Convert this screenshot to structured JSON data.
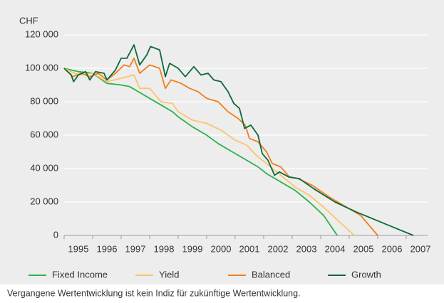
{
  "chart_data": {
    "type": "line",
    "ylabel": "CHF",
    "xlim": [
      1995,
      2008
    ],
    "xticks": [
      {
        "value": 1995,
        "label": "1995"
      },
      {
        "value": 1996,
        "label": "1996"
      },
      {
        "value": 1997,
        "label": "1997"
      },
      {
        "value": 1998,
        "label": "1998"
      },
      {
        "value": 1999,
        "label": "1999"
      },
      {
        "value": 2000,
        "label": "2000"
      },
      {
        "value": 2001,
        "label": "2001"
      },
      {
        "value": 2002,
        "label": "2002"
      },
      {
        "value": 2003,
        "label": "2003"
      },
      {
        "value": 2004,
        "label": "2004"
      },
      {
        "value": 2005,
        "label": "2005"
      },
      {
        "value": 2006,
        "label": "2006"
      },
      {
        "value": 2007,
        "label": "2007"
      }
    ],
    "ylim": [
      0,
      120000
    ],
    "yticks": [
      0,
      {
        "value": 20000,
        "label": "20 000"
      },
      {
        "value": 40000,
        "label": "40 000"
      },
      {
        "value": 60000,
        "label": "60 000"
      },
      {
        "value": 80000,
        "label": "80 000"
      },
      {
        "value": 100000,
        "label": "100 000"
      },
      {
        "value": 120000,
        "label": "120 000"
      }
    ],
    "grid": true,
    "legend": "bottom",
    "series": [
      {
        "name": "Fixed Income",
        "color": "#2bb24c",
        "x": [
          1995,
          1995.5,
          1996,
          1996.5,
          1997,
          1997.3,
          1997.6,
          1998,
          1998.4,
          1998.8,
          1999,
          1999.5,
          2000,
          2000.4,
          2000.9,
          2001.3,
          2001.8,
          2002.1,
          2002.6,
          2003.1,
          2003.6,
          2004.1,
          2004.58
        ],
        "values": [
          100000,
          98000,
          97000,
          91000,
          90000,
          89000,
          86000,
          82000,
          78000,
          74000,
          71000,
          65000,
          60000,
          55000,
          50000,
          46000,
          41000,
          37000,
          32000,
          27000,
          20000,
          12000,
          0
        ]
      },
      {
        "name": "Yield",
        "color": "#fbc46c",
        "x": [
          1995,
          1995.5,
          1996,
          1996.5,
          1997,
          1997.45,
          1997.65,
          1998,
          1998.4,
          1998.8,
          1999,
          1999.5,
          2000,
          2000.5,
          2001,
          2001.4,
          2001.8,
          2002.1,
          2002.6,
          2003.1,
          2003.6,
          2004.1,
          2004.6,
          2005.18
        ],
        "values": [
          100000,
          96000,
          97000,
          92000,
          94000,
          96000,
          88000,
          88000,
          80000,
          79000,
          74000,
          69000,
          67000,
          63000,
          57000,
          54000,
          47000,
          43000,
          36000,
          29000,
          24000,
          17000,
          9000,
          0
        ]
      },
      {
        "name": "Balanced",
        "color": "#f07f1e",
        "x": [
          1995,
          1995.3,
          1995.6,
          1995.9,
          1996.2,
          1996.5,
          1996.8,
          1997.1,
          1997.3,
          1997.45,
          1997.65,
          1998,
          1998.35,
          1998.55,
          1998.75,
          1999.1,
          1999.4,
          1999.7,
          2000,
          2000.4,
          2000.75,
          2001.1,
          2001.35,
          2001.5,
          2001.8,
          2002.1,
          2002.3,
          2002.6,
          2002.9,
          2003.2,
          2003.7,
          2004.3,
          2004.9,
          2005.4,
          2006
        ],
        "values": [
          100000,
          95000,
          97000,
          95000,
          97000,
          93000,
          97000,
          102000,
          101000,
          106000,
          97000,
          102000,
          100000,
          88000,
          93000,
          91000,
          88000,
          86000,
          82000,
          80000,
          74000,
          70000,
          66000,
          58000,
          56000,
          50000,
          43000,
          41000,
          35000,
          34000,
          30000,
          23000,
          17000,
          12000,
          0
        ]
      },
      {
        "name": "Growth",
        "color": "#0b6a3a",
        "x": [
          1995,
          1995.25,
          1995.33,
          1995.5,
          1995.75,
          1995.9,
          1996.1,
          1996.4,
          1996.5,
          1996.8,
          1997,
          1997.2,
          1997.45,
          1997.65,
          1997.9,
          1998.03,
          1998.35,
          1998.55,
          1998.7,
          1999,
          1999.25,
          1999.55,
          1999.8,
          2000.05,
          2000.25,
          2000.5,
          2000.75,
          2000.95,
          2001.15,
          2001.33,
          2001.55,
          2001.8,
          2001.95,
          2002.15,
          2002.38,
          2002.55,
          2002.88,
          2003.25,
          2003.75,
          2004.5,
          2005.25,
          2006.25,
          2007.25
        ],
        "values": [
          100000,
          96000,
          92000,
          96000,
          98000,
          93000,
          98000,
          97000,
          93000,
          99000,
          106000,
          106000,
          114000,
          102000,
          108000,
          113000,
          111000,
          95000,
          103000,
          100000,
          95000,
          101000,
          96000,
          97000,
          93000,
          92000,
          86000,
          79000,
          76000,
          64000,
          66000,
          60000,
          49000,
          45000,
          36000,
          38000,
          35000,
          34000,
          28000,
          20000,
          14000,
          7000,
          0
        ]
      }
    ],
    "note": "Vergangene Wertentwicklung ist kein Indiz für zukünftige Wertentwicklung."
  }
}
